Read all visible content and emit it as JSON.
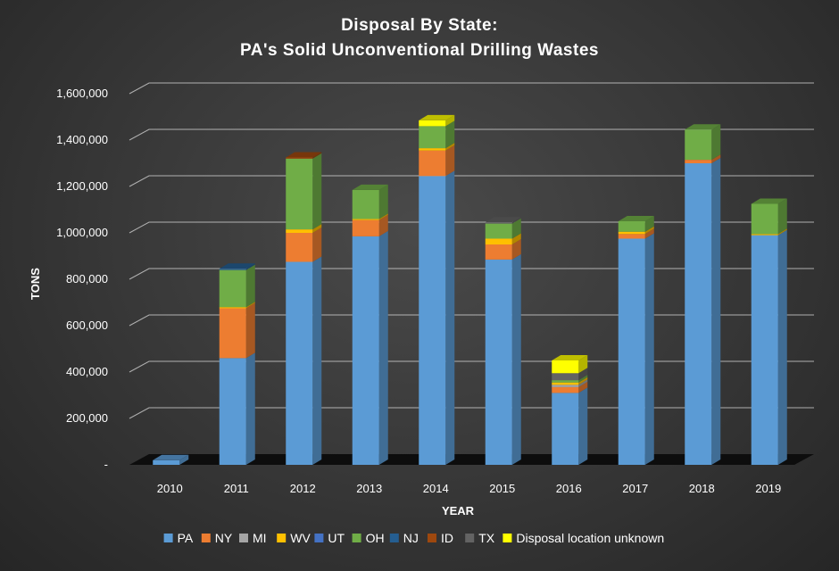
{
  "chart_data": {
    "type": "bar",
    "stacked": true,
    "title": [
      "Disposal By State:",
      "PA's Solid Unconventional Drilling Wastes"
    ],
    "xlabel": "YEAR",
    "ylabel": "TONS",
    "ylim": [
      0,
      1600000
    ],
    "yticks": [
      "-",
      "200,000",
      "400,000",
      "600,000",
      "800,000",
      "1,000,000",
      "1,200,000",
      "1,400,000",
      "1,600,000"
    ],
    "ytick_values": [
      0,
      200000,
      400000,
      600000,
      800000,
      1000000,
      1200000,
      1400000,
      1600000
    ],
    "grid": true,
    "legend_position": "bottom",
    "categories": [
      "2010",
      "2011",
      "2012",
      "2013",
      "2014",
      "2015",
      "2016",
      "2017",
      "2018",
      "2019"
    ],
    "series": [
      {
        "name": "PA",
        "color": "#5b9bd5",
        "values": [
          20000,
          460000,
          875000,
          985000,
          1245000,
          885000,
          310000,
          975000,
          1300000,
          990000
        ]
      },
      {
        "name": "NY",
        "color": "#ed7d31",
        "values": [
          0,
          215000,
          125000,
          70000,
          110000,
          65000,
          25000,
          20000,
          15000,
          0
        ]
      },
      {
        "name": "MI",
        "color": "#a5a5a5",
        "values": [
          0,
          0,
          0,
          0,
          0,
          0,
          10000,
          0,
          0,
          0
        ]
      },
      {
        "name": "WV",
        "color": "#ffc000",
        "values": [
          0,
          5000,
          15000,
          5000,
          10000,
          25000,
          10000,
          10000,
          0,
          5000
        ]
      },
      {
        "name": "UT",
        "color": "#4472c4",
        "values": [
          0,
          0,
          0,
          0,
          0,
          0,
          0,
          0,
          0,
          0
        ]
      },
      {
        "name": "OH",
        "color": "#70ad47",
        "values": [
          0,
          160000,
          305000,
          125000,
          95000,
          65000,
          10000,
          45000,
          130000,
          130000
        ]
      },
      {
        "name": "NJ",
        "color": "#255e91",
        "values": [
          0,
          5000,
          0,
          0,
          0,
          0,
          0,
          0,
          0,
          0
        ]
      },
      {
        "name": "ID",
        "color": "#9e480e",
        "values": [
          0,
          0,
          5000,
          0,
          0,
          0,
          0,
          0,
          0,
          0
        ]
      },
      {
        "name": "TX",
        "color": "#636363",
        "values": [
          0,
          0,
          0,
          0,
          0,
          5000,
          30000,
          0,
          0,
          0
        ]
      },
      {
        "name": "Disposal location unknown",
        "color": "#ffff00",
        "values": [
          0,
          0,
          0,
          0,
          25000,
          0,
          55000,
          0,
          0,
          0
        ]
      }
    ]
  }
}
